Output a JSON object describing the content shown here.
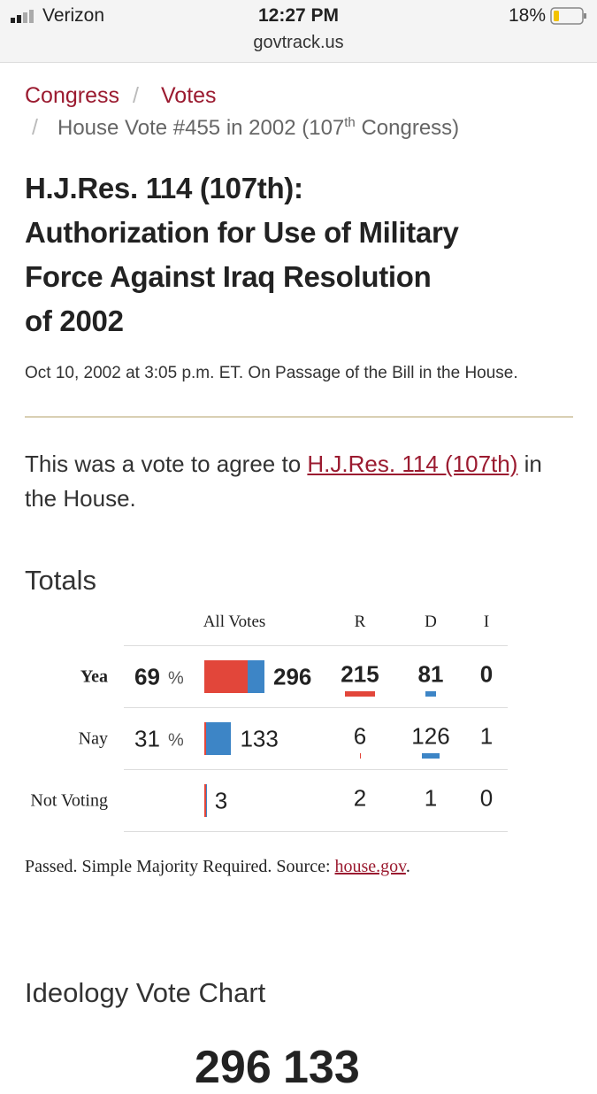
{
  "status_bar": {
    "carrier": "Verizon",
    "time": "12:27 PM",
    "url": "govtrack.us",
    "battery": "18%"
  },
  "breadcrumb": {
    "items": [
      "Congress",
      "Votes"
    ],
    "separator": "/",
    "current": {
      "text": "House Vote #455 in 2002 (107",
      "sup": "th",
      "rest": " Congress)"
    }
  },
  "title_lines": [
    "H.J.Res. 114 (107th):",
    "Authorization for Use of Military",
    "Force Against Iraq Resolution",
    "of 2002"
  ],
  "subtitle": "Oct 10, 2002 at 3:05 p.m. ET. On Passage of the Bill in the House.",
  "intro": {
    "before": "This was a vote to agree to",
    "link": "H.J.Res. 114 (107th)",
    "after": "in the House."
  },
  "totals": {
    "heading": "Totals",
    "columns": [
      "All Votes",
      "R",
      "D",
      "I"
    ],
    "rows": [
      {
        "label": "Yea",
        "percent": 69,
        "percent_sign": "%",
        "total": 296,
        "r": 215,
        "d": 81,
        "i": 0
      },
      {
        "label": "Nay",
        "percent": 31,
        "percent_sign": "%",
        "total": 133,
        "r": 6,
        "d": 126,
        "i": 1
      },
      {
        "label": "Not Voting",
        "total": 3,
        "r": 2,
        "d": 1,
        "i": 0
      }
    ]
  },
  "note": {
    "text": "Passed. Simple Majority Required. Source:",
    "link": "house.gov",
    "end": "."
  },
  "ideology_chart": {
    "heading": "Ideology Vote Chart",
    "yea": 296,
    "nay": 133
  }
}
